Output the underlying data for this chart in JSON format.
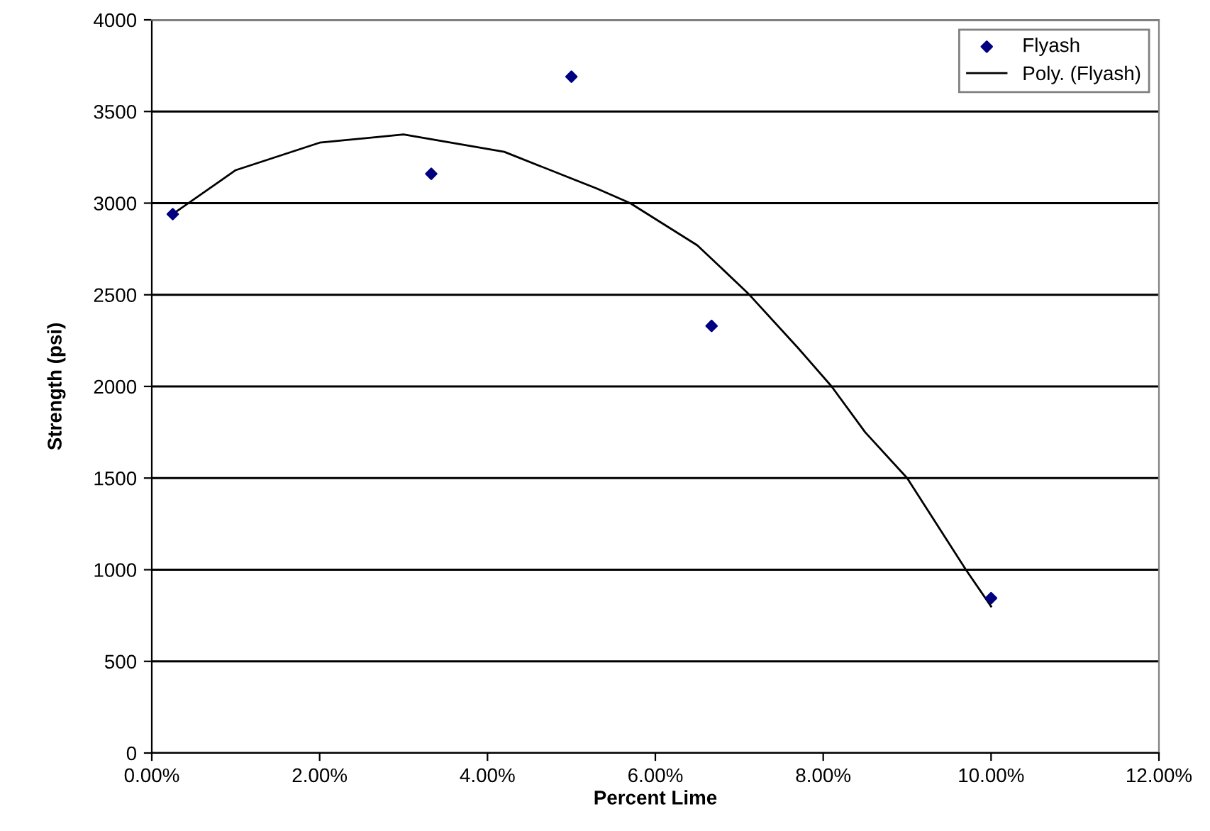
{
  "chart_data": {
    "type": "scatter",
    "xlabel": "Percent Lime",
    "ylabel": "Strength (psi)",
    "xlim": [
      0,
      12
    ],
    "ylim": [
      0,
      4000
    ],
    "xticks": [
      {
        "value": 0,
        "label": "0.00%"
      },
      {
        "value": 2,
        "label": "2.00%"
      },
      {
        "value": 4,
        "label": "4.00%"
      },
      {
        "value": 6,
        "label": "6.00%"
      },
      {
        "value": 8,
        "label": "8.00%"
      },
      {
        "value": 10,
        "label": "10.00%"
      },
      {
        "value": 12,
        "label": "12.00%"
      }
    ],
    "yticks": [
      0,
      500,
      1000,
      1500,
      2000,
      2500,
      3000,
      3500,
      4000
    ],
    "grid": "y",
    "legend": "top right",
    "series": [
      {
        "name": "Flyash",
        "color": "#000080",
        "marker": "diamond",
        "x": [
          0.25,
          3.33,
          5,
          6.67,
          10
        ],
        "values": [
          2940,
          3160,
          3690,
          2330,
          845
        ]
      },
      {
        "name": "Poly. (Flyash)",
        "type": "line",
        "color": "#000000",
        "marker": "none",
        "line_style": "solid",
        "x": [
          0.28,
          1.0,
          2.0,
          3.0,
          4.2,
          5.3,
          5.7,
          6.5,
          7.1,
          7.7,
          8.1,
          8.5,
          9.0,
          9.7,
          10.0
        ],
        "values": [
          2950,
          3180,
          3330,
          3375,
          3280,
          3080,
          3000,
          2770,
          2510,
          2210,
          2000,
          1750,
          1500,
          1000,
          800
        ]
      }
    ]
  }
}
